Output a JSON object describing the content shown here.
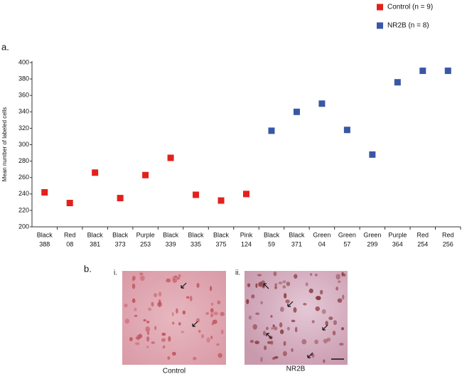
{
  "chart_data": {
    "type": "scatter",
    "panel_label": "a.",
    "y_label": "Mean number of labeled cells",
    "categories": [
      [
        "Black",
        "388"
      ],
      [
        "Red",
        "08"
      ],
      [
        "Black",
        "381"
      ],
      [
        "Black",
        "373"
      ],
      [
        "Purple",
        "253"
      ],
      [
        "Black",
        "339"
      ],
      [
        "Black",
        "335"
      ],
      [
        "Black",
        "375"
      ],
      [
        "Pink",
        "124"
      ],
      [
        "Black",
        "59"
      ],
      [
        "Black",
        "371"
      ],
      [
        "Green",
        "04"
      ],
      [
        "Green",
        "57"
      ],
      [
        "Green",
        "299"
      ],
      [
        "Purple",
        "364"
      ],
      [
        "Red",
        "254"
      ],
      [
        "Red",
        "256"
      ]
    ],
    "series": [
      {
        "name": "Control (n = 9)",
        "color": "#e3211c",
        "values": [
          242,
          229,
          266,
          235,
          263,
          284,
          239,
          232,
          240,
          null,
          null,
          null,
          null,
          null,
          null,
          null,
          null
        ]
      },
      {
        "name": "NR2B (n = 8)",
        "color": "#3957a6",
        "values": [
          null,
          null,
          null,
          null,
          null,
          null,
          null,
          null,
          null,
          317,
          340,
          350,
          318,
          288,
          376,
          390,
          390
        ]
      }
    ],
    "ylim": [
      200,
      400
    ],
    "yticks": [
      200,
      220,
      240,
      260,
      280,
      300,
      320,
      340,
      360,
      380,
      400
    ]
  },
  "panel_b": {
    "label": "b.",
    "images": [
      {
        "label": "i.",
        "caption": "Control"
      },
      {
        "label": "ii.",
        "caption": "NR2B"
      }
    ]
  }
}
